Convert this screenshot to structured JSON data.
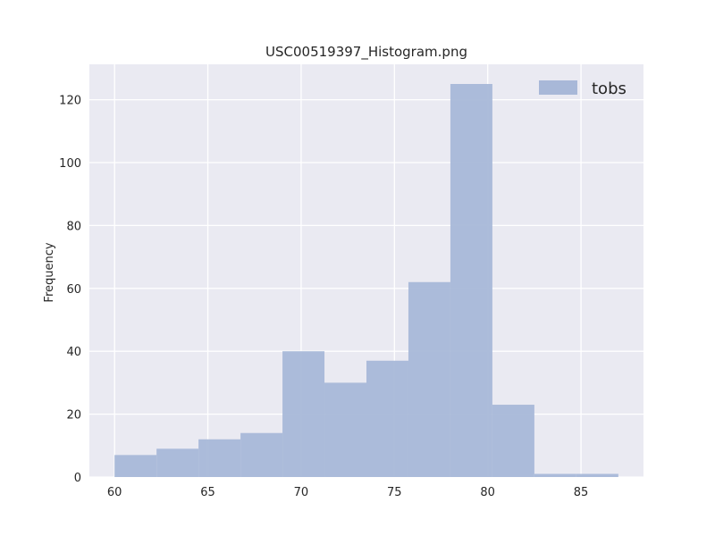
{
  "chart_data": {
    "type": "bar",
    "title": "USC00519397_Histogram.png",
    "xlabel": "",
    "ylabel": "Frequency",
    "xlim": [
      58.65,
      88.35
    ],
    "ylim": [
      0,
      131.25
    ],
    "x_ticks": [
      60,
      65,
      70,
      75,
      80,
      85
    ],
    "y_ticks": [
      0,
      20,
      40,
      60,
      80,
      100,
      120
    ],
    "grid": true,
    "legend_position": "top-right",
    "bins": [
      {
        "start": 60.0,
        "end": 62.25,
        "count": 7
      },
      {
        "start": 62.25,
        "end": 64.5,
        "count": 9
      },
      {
        "start": 64.5,
        "end": 66.75,
        "count": 12
      },
      {
        "start": 66.75,
        "end": 69.0,
        "count": 14
      },
      {
        "start": 69.0,
        "end": 71.25,
        "count": 40
      },
      {
        "start": 71.25,
        "end": 73.5,
        "count": 30
      },
      {
        "start": 73.5,
        "end": 75.75,
        "count": 37
      },
      {
        "start": 75.75,
        "end": 78.0,
        "count": 62
      },
      {
        "start": 78.0,
        "end": 80.25,
        "count": 125
      },
      {
        "start": 80.25,
        "end": 82.5,
        "count": 23
      },
      {
        "start": 82.5,
        "end": 84.75,
        "count": 1
      },
      {
        "start": 84.75,
        "end": 87.0,
        "count": 1
      }
    ],
    "series": [
      {
        "name": "tobs",
        "color": "#a8b8d8"
      }
    ],
    "background_color": "#eaeaf2",
    "grid_color": "#ffffff"
  }
}
